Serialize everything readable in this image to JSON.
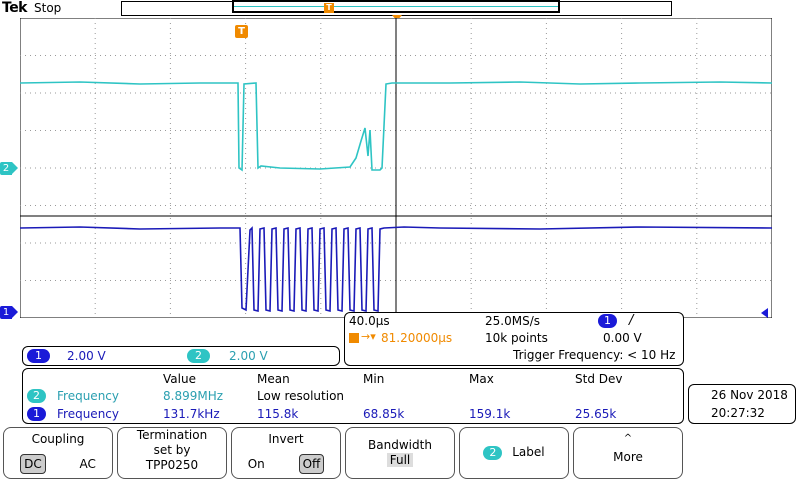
{
  "header": {
    "brand": "Tek",
    "run_state": "Stop",
    "trigger_marker": "T"
  },
  "channels": {
    "ch2_marker": "2",
    "ch1_marker": "1",
    "trigger_marker": "T",
    "ch1_color": "#1a1ad8",
    "ch2_color": "#2ec4c4"
  },
  "timebase": {
    "horizontal": "40.0µs",
    "sample_rate": "25.0MS/s",
    "trigger_badge": "1",
    "trigger_slope": "/",
    "trigger_position": "81.20000µs",
    "record_length": "10k points",
    "trigger_level": "0.00 V",
    "trigger_frequency": "Trigger Frequency: < 10 Hz"
  },
  "scales": {
    "ch1_badge": "1",
    "ch1_scale": "2.00 V",
    "ch2_badge": "2",
    "ch2_scale": "2.00 V"
  },
  "measurements": {
    "headers": {
      "value": "Value",
      "mean": "Mean",
      "min": "Min",
      "max": "Max",
      "std": "Std Dev"
    },
    "rows": [
      {
        "badge": "2",
        "name": "Frequency",
        "value": "8.899MHz",
        "mean": "Low resolution",
        "min": "",
        "max": "",
        "std": ""
      },
      {
        "badge": "1",
        "name": "Frequency",
        "value": "131.7kHz",
        "mean": "115.8k",
        "min": "68.85k",
        "max": "159.1k",
        "std": "25.65k"
      }
    ]
  },
  "datetime": {
    "date": "26 Nov 2018",
    "time": "20:27:32"
  },
  "menu": {
    "coupling": {
      "title": "Coupling",
      "opt_a": "DC",
      "opt_b": "AC"
    },
    "termination": {
      "line1": "Termination",
      "line2": "set by",
      "line3": "TPP0250"
    },
    "invert": {
      "title": "Invert",
      "opt_a": "On",
      "opt_b": "Off"
    },
    "bandwidth": {
      "title": "Bandwidth",
      "value": "Full"
    },
    "label": {
      "badge": "2",
      "title": "Label"
    },
    "more": {
      "arrow": "^",
      "title": "More"
    }
  }
}
